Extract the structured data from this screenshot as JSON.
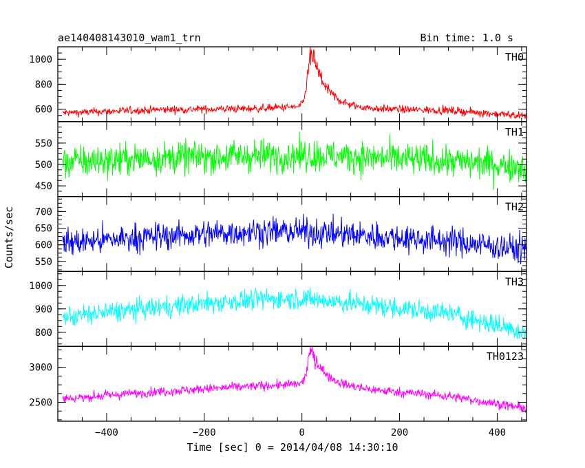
{
  "chart_data": {
    "type": "line",
    "title": "ae140408143010_wam1_trn",
    "subtitle": "Bin time: 1.0 s",
    "xlabel": "Time [sec] 0 = 2014/04/08 14:30:10",
    "ylabel": "Counts/sec",
    "xlim": [
      -500,
      460
    ],
    "x_ticks": [
      -400,
      -200,
      0,
      200,
      400
    ],
    "x_tick_labels": [
      "−400",
      "−200",
      "0",
      "200",
      "400"
    ],
    "grid": false,
    "panels": [
      {
        "name": "TH0",
        "color": "#ff0000",
        "ylim": [
          500,
          1100
        ],
        "y_ticks": [
          600,
          800,
          1000
        ],
        "y_tick_labels": [
          "600",
          "800",
          "1000"
        ],
        "baseline_points": [
          [
            -490,
            570
          ],
          [
            -300,
            595
          ],
          [
            -100,
            605
          ],
          [
            0,
            620
          ],
          [
            100,
            605
          ],
          [
            300,
            590
          ],
          [
            460,
            545
          ]
        ],
        "noise": 28,
        "peak": {
          "center": 20,
          "height": 440,
          "rise": 8,
          "decay": 30
        }
      },
      {
        "name": "TH1",
        "color": "#00ff00",
        "ylim": [
          425,
          600
        ],
        "y_ticks": [
          450,
          500,
          550
        ],
        "y_tick_labels": [
          "450",
          "500",
          "550"
        ],
        "baseline_points": [
          [
            -490,
            505
          ],
          [
            -300,
            515
          ],
          [
            -100,
            520
          ],
          [
            0,
            522
          ],
          [
            100,
            518
          ],
          [
            300,
            508
          ],
          [
            460,
            495
          ]
        ],
        "noise": 34
      },
      {
        "name": "TH2",
        "color": "#0000ff",
        "ylim": [
          520,
          745
        ],
        "y_ticks": [
          550,
          600,
          650,
          700
        ],
        "y_tick_labels": [
          "550",
          "600",
          "650",
          "700"
        ],
        "baseline_points": [
          [
            -490,
            605
          ],
          [
            -300,
            625
          ],
          [
            -100,
            640
          ],
          [
            0,
            640
          ],
          [
            100,
            630
          ],
          [
            300,
            612
          ],
          [
            460,
            585
          ]
        ],
        "noise": 38
      },
      {
        "name": "TH3",
        "color": "#00ffff",
        "ylim": [
          740,
          1060
        ],
        "y_ticks": [
          800,
          900,
          1000
        ],
        "y_tick_labels": [
          "800",
          "900",
          "1000"
        ],
        "baseline_points": [
          [
            -490,
            865
          ],
          [
            -300,
            905
          ],
          [
            -100,
            940
          ],
          [
            0,
            945
          ],
          [
            100,
            925
          ],
          [
            300,
            880
          ],
          [
            460,
            800
          ]
        ],
        "noise": 40
      },
      {
        "name": "TH0123",
        "color": "#ff00ff",
        "ylim": [
          2230,
          3300
        ],
        "y_ticks": [
          2500,
          3000
        ],
        "y_tick_labels": [
          "2500",
          "3000"
        ],
        "baseline_points": [
          [
            -490,
            2550
          ],
          [
            -300,
            2650
          ],
          [
            -100,
            2730
          ],
          [
            0,
            2760
          ],
          [
            100,
            2700
          ],
          [
            300,
            2590
          ],
          [
            460,
            2410
          ]
        ],
        "noise": 60,
        "peak": {
          "center": 20,
          "height": 480,
          "rise": 8,
          "decay": 30
        }
      }
    ]
  }
}
